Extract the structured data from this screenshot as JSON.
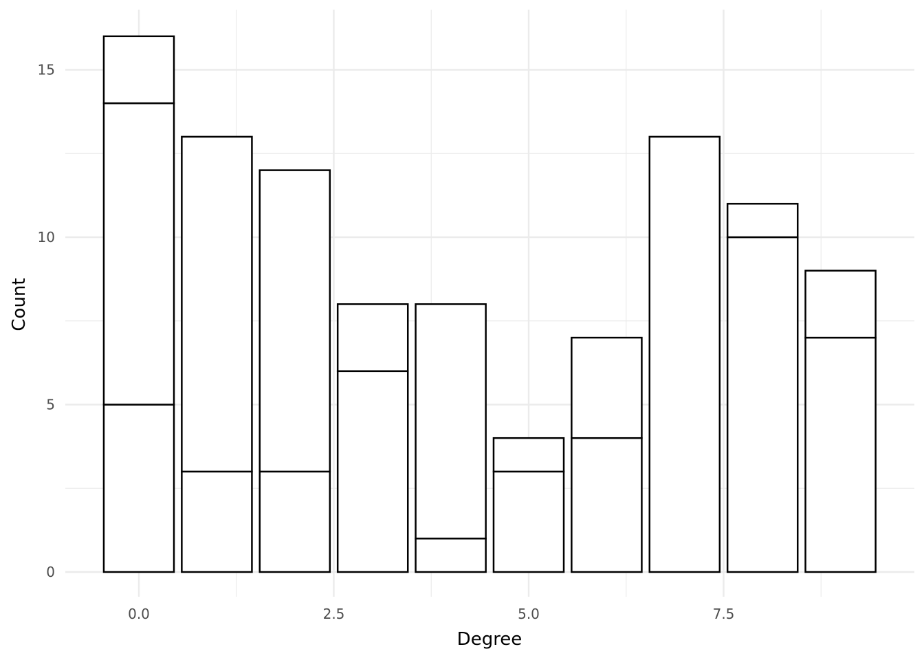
{
  "chart_data": {
    "type": "bar",
    "stacked": true,
    "xlabel": "Degree",
    "ylabel": "Count",
    "x": [
      0,
      1,
      2,
      3,
      4,
      5,
      6,
      7,
      8,
      9
    ],
    "stack_boundaries": [
      [
        5,
        14,
        16
      ],
      [
        3,
        13
      ],
      [
        3,
        12
      ],
      [
        6,
        8
      ],
      [
        1,
        8
      ],
      [
        3,
        4
      ],
      [
        4,
        7
      ],
      [
        13
      ],
      [
        10,
        11
      ],
      [
        7,
        9
      ]
    ],
    "totals": [
      16,
      13,
      12,
      8,
      8,
      4,
      7,
      13,
      11,
      9
    ],
    "xlim": [
      -0.9,
      9.9
    ],
    "ylim": [
      0,
      16
    ],
    "x_ticks": [
      0,
      2.5,
      5,
      7.5
    ],
    "x_tick_labels": [
      "0.0",
      "2.5",
      "5.0",
      "7.5"
    ],
    "y_ticks": [
      0,
      5,
      10,
      15
    ],
    "y_tick_labels": [
      "0",
      "5",
      "10",
      "15"
    ],
    "bar_fill": "#ffffff",
    "bar_outline": "#000000",
    "grid": true,
    "legend": "none"
  }
}
